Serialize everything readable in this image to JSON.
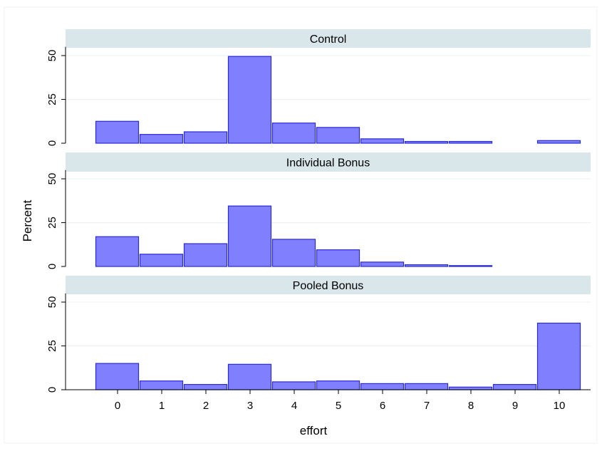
{
  "chart_data": {
    "type": "bar",
    "xlabel": "effort",
    "ylabel": "Percent",
    "x_ticks": [
      "0",
      "1",
      "2",
      "3",
      "4",
      "5",
      "6",
      "7",
      "8",
      "9",
      "10"
    ],
    "y_ticks": [
      "0",
      "25",
      "50"
    ],
    "ylim": [
      0,
      55
    ],
    "grid": true,
    "bar_color": "#8080ff",
    "bar_edge_color": "#2a2ad6",
    "panel_header_color": "#d9e6ea",
    "panels": [
      {
        "title": "Control",
        "categories": [
          0,
          1,
          2,
          3,
          4,
          5,
          6,
          7,
          8,
          9,
          10
        ],
        "values": [
          12.5,
          5,
          6.5,
          49.5,
          11.5,
          9,
          2.5,
          1,
          1,
          0,
          1.5
        ]
      },
      {
        "title": "Individual Bonus",
        "categories": [
          0,
          1,
          2,
          3,
          4,
          5,
          6,
          7,
          8,
          9,
          10
        ],
        "values": [
          17,
          7,
          13,
          34.5,
          15.5,
          9.5,
          2.5,
          1,
          0.5,
          0,
          0
        ]
      },
      {
        "title": "Pooled Bonus",
        "categories": [
          0,
          1,
          2,
          3,
          4,
          5,
          6,
          7,
          8,
          9,
          10
        ],
        "values": [
          15,
          5,
          3,
          14.5,
          4.5,
          5,
          3.5,
          3.5,
          1.5,
          3,
          38
        ]
      }
    ]
  }
}
